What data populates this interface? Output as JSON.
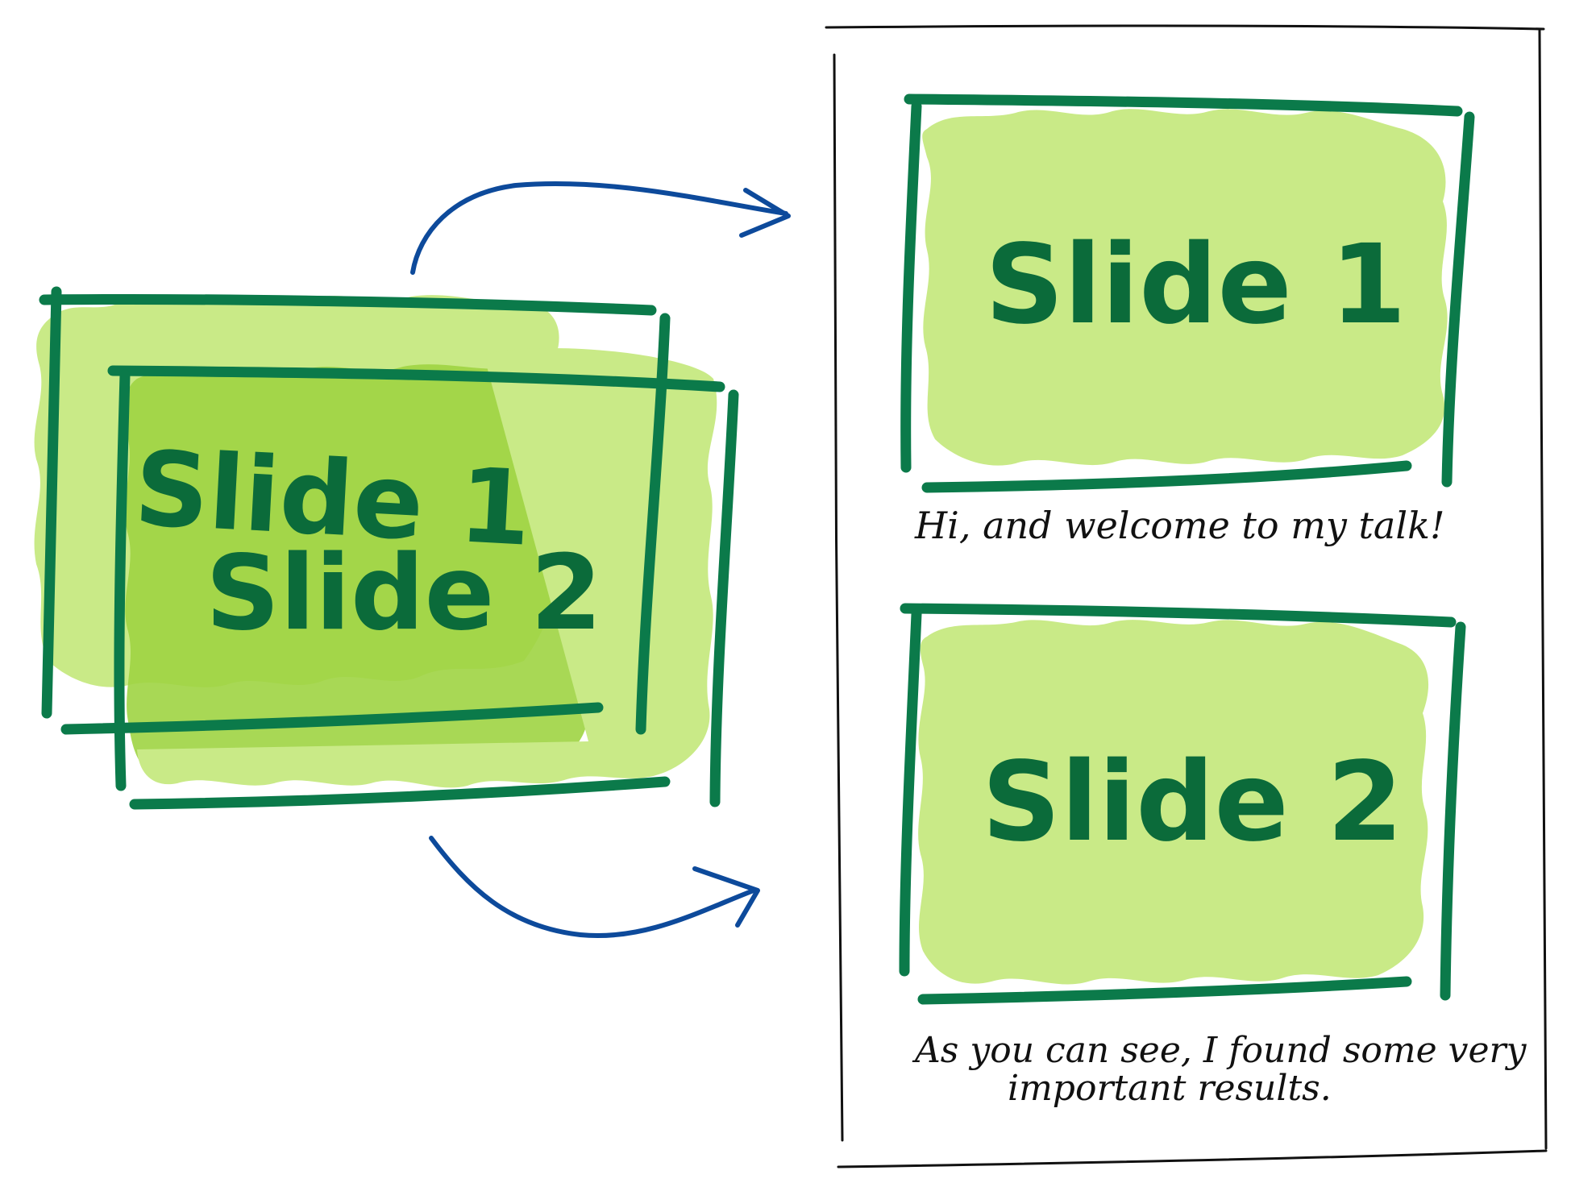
{
  "colors": {
    "fill_light": "#c9ea87",
    "fill_mid": "#9ed443",
    "frame_green": "#0b7a4a",
    "text_green": "#0b6b3a",
    "arrow_blue": "#0d4a9b",
    "ink": "#111111",
    "background": "#ffffff"
  },
  "stacked_slides": {
    "back_label": "Slide 1",
    "front_label": "Slide 2"
  },
  "document": {
    "slides": [
      {
        "label": "Slide 1",
        "caption": [
          "Hi, and welcome to my talk!"
        ]
      },
      {
        "label": "Slide 2",
        "caption": [
          "As you can see, I found some very",
          "important results."
        ]
      }
    ]
  },
  "icons": {
    "arrow_top": "curved-arrow-right-icon",
    "arrow_bottom": "curved-arrow-right-icon"
  }
}
